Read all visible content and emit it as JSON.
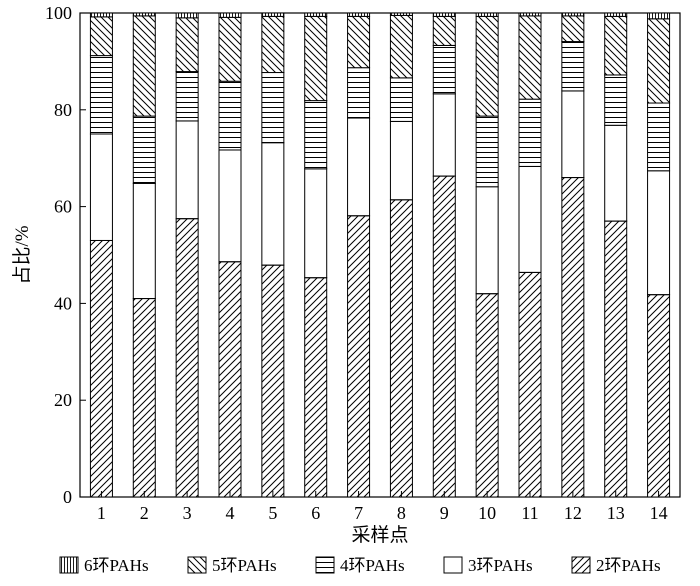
{
  "chart_data": {
    "type": "bar",
    "stacked": true,
    "title": "",
    "xlabel": "采样点",
    "ylabel": "占比/%",
    "ylim": [
      0,
      100
    ],
    "yticks": [
      0,
      20,
      40,
      60,
      80,
      100
    ],
    "grid": false,
    "legend_position": "bottom",
    "categories": [
      "1",
      "2",
      "3",
      "4",
      "5",
      "6",
      "7",
      "8",
      "9",
      "10",
      "11",
      "12",
      "13",
      "14"
    ],
    "series": [
      {
        "name": "2环PAHs",
        "pattern": "diagonal-hatch",
        "values": [
          53.0,
          41.0,
          57.5,
          48.6,
          47.9,
          45.3,
          58.1,
          61.4,
          66.3,
          42.0,
          46.4,
          66.0,
          57.0,
          41.8
        ]
      },
      {
        "name": "3环PAHs",
        "pattern": "blank",
        "values": [
          22.0,
          23.8,
          20.2,
          23.1,
          25.3,
          22.5,
          20.2,
          16.2,
          17.0,
          22.1,
          21.9,
          17.9,
          19.8,
          25.6
        ]
      },
      {
        "name": "4环PAHs",
        "pattern": "horizontal-lines",
        "values": [
          16.2,
          13.9,
          10.2,
          14.2,
          14.5,
          14.1,
          10.4,
          9.0,
          10.0,
          14.6,
          13.9,
          10.2,
          10.4,
          14.0
        ]
      },
      {
        "name": "5环PAHs",
        "pattern": "back-diagonal-hatch",
        "values": [
          8.0,
          20.7,
          11.1,
          13.2,
          11.6,
          17.4,
          10.6,
          12.9,
          6.0,
          20.6,
          17.2,
          5.3,
          12.1,
          17.4
        ]
      },
      {
        "name": "6环PAHs",
        "pattern": "vertical-lines",
        "values": [
          0.8,
          0.6,
          1.0,
          0.9,
          0.7,
          0.7,
          0.7,
          0.5,
          0.7,
          0.7,
          0.6,
          0.6,
          0.7,
          1.2
        ]
      }
    ]
  },
  "legend_order": [
    4,
    3,
    2,
    1,
    0
  ]
}
